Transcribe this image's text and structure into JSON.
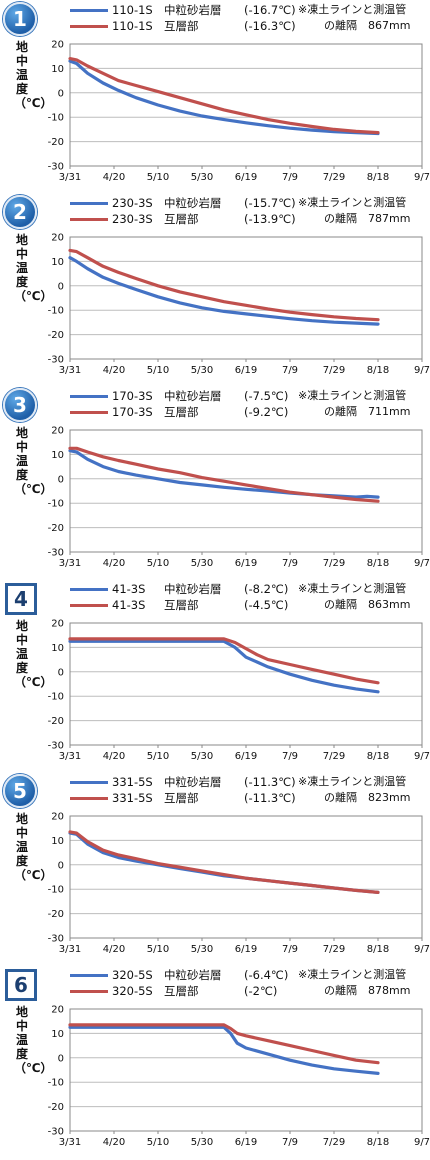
{
  "colors": {
    "blue": "#4472c4",
    "red": "#c0504d",
    "grid": "#bdbdbd"
  },
  "ylabel": "地中温度（℃）",
  "note_line1": "※凍土ラインと測温管",
  "x_ticks": [
    "3/31",
    "4/20",
    "5/10",
    "5/30",
    "6/19",
    "7/9",
    "7/29",
    "8/18",
    "9/7"
  ],
  "y_ticks": [
    "20",
    "10",
    "0",
    "-10",
    "-20",
    "-30"
  ],
  "chart_data": [
    {
      "type": "line",
      "badge": "1",
      "badge_style": "circle",
      "note_line2": "の離隔　867mm",
      "ylim": [
        -30,
        20
      ],
      "x_tick_days": [
        0,
        20,
        40,
        60,
        80,
        100,
        120,
        140,
        160
      ],
      "series": [
        {
          "name": "110-1S",
          "desc": "中粒砂岩層",
          "value_label": "(-16.7℃)",
          "color": "blue",
          "x": [
            0,
            3,
            8,
            15,
            22,
            30,
            40,
            50,
            60,
            70,
            80,
            90,
            100,
            110,
            120,
            130,
            140
          ],
          "y": [
            13,
            12,
            8,
            4,
            1,
            -2,
            -5,
            -7.5,
            -9.5,
            -11,
            -12.3,
            -13.5,
            -14.5,
            -15.3,
            -15.9,
            -16.3,
            -16.7
          ]
        },
        {
          "name": "110-1S",
          "desc": "互層部",
          "value_label": "(-16.3℃)",
          "color": "red",
          "x": [
            0,
            3,
            8,
            15,
            22,
            30,
            40,
            50,
            60,
            70,
            80,
            90,
            100,
            110,
            120,
            130,
            140
          ],
          "y": [
            14,
            13.5,
            11,
            8,
            5,
            3,
            0.5,
            -2,
            -4.5,
            -7,
            -9,
            -11,
            -12.5,
            -13.8,
            -15,
            -15.8,
            -16.3
          ]
        }
      ]
    },
    {
      "type": "line",
      "badge": "2",
      "badge_style": "circle",
      "note_line2": "の離隔　787mm",
      "ylim": [
        -30,
        20
      ],
      "x_tick_days": [
        0,
        20,
        40,
        60,
        80,
        100,
        120,
        140,
        160
      ],
      "series": [
        {
          "name": "230-3S",
          "desc": "中粒砂岩層",
          "value_label": "(-15.7℃)",
          "color": "blue",
          "x": [
            0,
            3,
            8,
            15,
            22,
            30,
            40,
            50,
            60,
            70,
            80,
            90,
            100,
            110,
            120,
            130,
            140
          ],
          "y": [
            11.5,
            10,
            7,
            3.5,
            1,
            -1.5,
            -4.5,
            -7,
            -9,
            -10.5,
            -11.5,
            -12.5,
            -13.5,
            -14.3,
            -14.9,
            -15.3,
            -15.7
          ]
        },
        {
          "name": "230-3S",
          "desc": "互層部",
          "value_label": "(-13.9℃)",
          "color": "red",
          "x": [
            0,
            3,
            8,
            15,
            22,
            30,
            40,
            50,
            60,
            70,
            80,
            90,
            100,
            110,
            120,
            130,
            140
          ],
          "y": [
            14.5,
            14,
            11.5,
            8,
            5.5,
            3,
            0,
            -2.5,
            -4.5,
            -6.5,
            -8,
            -9.5,
            -10.8,
            -11.8,
            -12.7,
            -13.4,
            -13.9
          ]
        }
      ]
    },
    {
      "type": "line",
      "badge": "3",
      "badge_style": "circle",
      "note_line2": "の離隔　711mm",
      "ylim": [
        -30,
        20
      ],
      "x_tick_days": [
        0,
        20,
        40,
        60,
        80,
        100,
        120,
        140,
        160
      ],
      "series": [
        {
          "name": "170-3S",
          "desc": "中粒砂岩層",
          "value_label": "(-7.5℃)",
          "color": "blue",
          "x": [
            0,
            3,
            8,
            15,
            22,
            30,
            40,
            50,
            60,
            70,
            80,
            90,
            100,
            110,
            120,
            130,
            135,
            140
          ],
          "y": [
            11.5,
            11,
            8,
            5,
            3,
            1.5,
            0,
            -1.5,
            -2.5,
            -3.5,
            -4.3,
            -5,
            -5.8,
            -6.5,
            -7,
            -7.5,
            -7.2,
            -7.5
          ]
        },
        {
          "name": "170-3S",
          "desc": "互層部",
          "value_label": "(-9.2℃)",
          "color": "red",
          "x": [
            0,
            3,
            8,
            15,
            22,
            30,
            40,
            50,
            60,
            70,
            80,
            90,
            100,
            110,
            120,
            130,
            140
          ],
          "y": [
            12.5,
            12.5,
            11,
            9,
            7.5,
            6,
            4,
            2.5,
            0.5,
            -1,
            -2.5,
            -4,
            -5.5,
            -6.5,
            -7.5,
            -8.5,
            -9.2
          ]
        }
      ]
    },
    {
      "type": "line",
      "badge": "4",
      "badge_style": "square",
      "note_line2": "の離隔　863mm",
      "ylim": [
        -30,
        20
      ],
      "x_tick_days": [
        0,
        20,
        40,
        60,
        80,
        100,
        120,
        140,
        160
      ],
      "series": [
        {
          "name": "41-3S",
          "desc": "中粒砂岩層",
          "value_label": "(-8.2℃)",
          "color": "blue",
          "x": [
            0,
            20,
            40,
            60,
            70,
            75,
            80,
            85,
            90,
            100,
            110,
            120,
            130,
            140
          ],
          "y": [
            12.5,
            12.5,
            12.5,
            12.5,
            12.5,
            10,
            6,
            4,
            2,
            -1,
            -3.5,
            -5.5,
            -7,
            -8.2
          ]
        },
        {
          "name": "41-3S",
          "desc": "互層部",
          "value_label": "(-4.5℃)",
          "color": "red",
          "x": [
            0,
            20,
            40,
            60,
            70,
            75,
            80,
            85,
            90,
            100,
            110,
            120,
            130,
            140
          ],
          "y": [
            13.5,
            13.5,
            13.5,
            13.5,
            13.5,
            12,
            9.5,
            7,
            5,
            3,
            1,
            -1,
            -3,
            -4.5
          ]
        }
      ]
    },
    {
      "type": "line",
      "badge": "5",
      "badge_style": "circle",
      "note_line2": "の離隔　823mm",
      "ylim": [
        -30,
        20
      ],
      "x_tick_days": [
        0,
        20,
        40,
        60,
        80,
        100,
        120,
        140,
        160
      ],
      "series": [
        {
          "name": "331-5S",
          "desc": "中粒砂岩層",
          "value_label": "(-11.3℃)",
          "color": "blue",
          "x": [
            0,
            3,
            8,
            15,
            22,
            30,
            40,
            50,
            60,
            70,
            80,
            90,
            100,
            110,
            120,
            130,
            140
          ],
          "y": [
            13,
            12.5,
            8.5,
            5,
            3,
            1.5,
            0,
            -1.5,
            -3,
            -4.5,
            -5.5,
            -6.5,
            -7.5,
            -8.5,
            -9.5,
            -10.5,
            -11.3
          ]
        },
        {
          "name": "331-5S",
          "desc": "互層部",
          "value_label": "(-11.3℃)",
          "color": "red",
          "x": [
            0,
            3,
            8,
            15,
            22,
            30,
            40,
            50,
            60,
            70,
            80,
            90,
            100,
            110,
            120,
            130,
            140
          ],
          "y": [
            13.5,
            13,
            9.5,
            6,
            4,
            2.5,
            0.5,
            -1,
            -2.5,
            -4,
            -5.5,
            -6.5,
            -7.5,
            -8.5,
            -9.5,
            -10.5,
            -11.3
          ]
        }
      ]
    },
    {
      "type": "line",
      "badge": "6",
      "badge_style": "square",
      "note_line2": "の離隔　878mm",
      "ylim": [
        -30,
        20
      ],
      "x_tick_days": [
        0,
        20,
        40,
        60,
        80,
        100,
        120,
        140,
        160
      ],
      "series": [
        {
          "name": "320-5S",
          "desc": "中粒砂岩層",
          "value_label": "(-6.4℃)",
          "color": "blue",
          "x": [
            0,
            20,
            40,
            60,
            70,
            73,
            76,
            80,
            90,
            100,
            110,
            120,
            130,
            140
          ],
          "y": [
            12.5,
            12.5,
            12.5,
            12.5,
            12.5,
            10,
            6,
            4,
            1.5,
            -1,
            -3,
            -4.5,
            -5.5,
            -6.4
          ]
        },
        {
          "name": "320-5S",
          "desc": "互層部",
          "value_label": "(-2℃)",
          "color": "red",
          "x": [
            0,
            20,
            40,
            60,
            70,
            73,
            76,
            80,
            90,
            100,
            110,
            120,
            130,
            140
          ],
          "y": [
            13.5,
            13.5,
            13.5,
            13.5,
            13.5,
            12,
            10,
            9,
            7,
            5,
            3,
            1,
            -1,
            -2
          ]
        }
      ]
    }
  ]
}
